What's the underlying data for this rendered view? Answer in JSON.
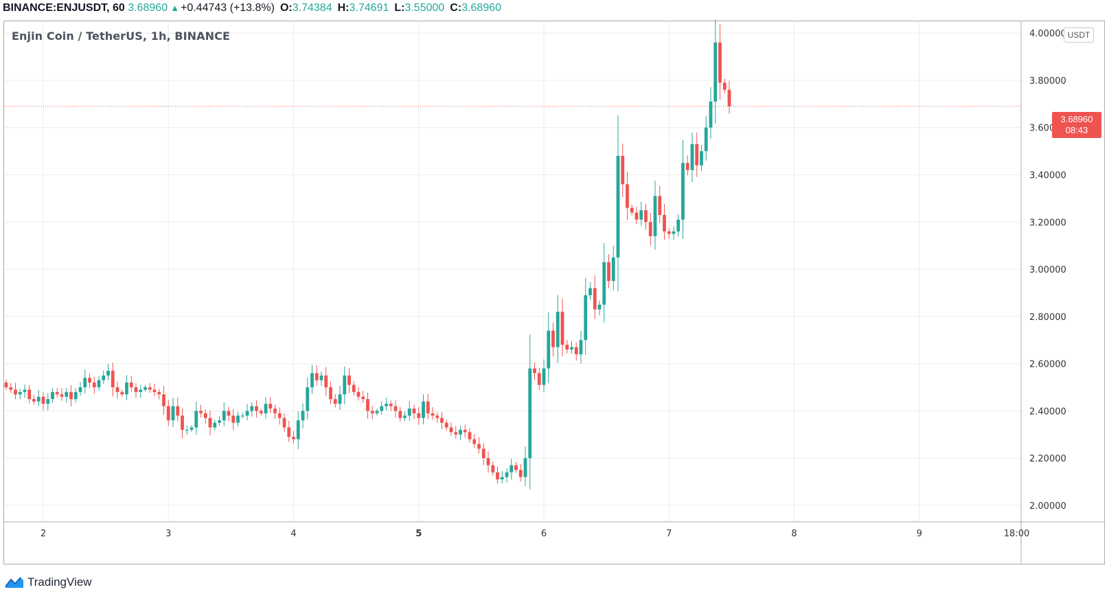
{
  "header": {
    "symbol": "BINANCE:ENJUSDT, 60",
    "price": "3.68960",
    "change_symbol": "▲",
    "change": "+0.44743 (+13.8%)",
    "open_label": "O:",
    "open": "3.74384",
    "high_label": "H:",
    "high": "3.74691",
    "low_label": "L:",
    "low": "3.55000",
    "close_label": "C:",
    "close": "3.68960"
  },
  "chart": {
    "title": "Enjin Coin / TetherUS, 1h, BINANCE",
    "currency": "USDT",
    "last_price": "3.68960",
    "countdown": "08:43",
    "last_price_value": 3.6896
  },
  "logo_text": "TradingView",
  "colors": {
    "up": "#26a69a",
    "down": "#ef5350",
    "grid": "#ececec",
    "price_line": "#ef5350"
  },
  "chart_data": {
    "type": "candlestick",
    "title": "Enjin Coin / TetherUS, 1h, BINANCE",
    "interval": "1h",
    "exchange": "BINANCE",
    "ylim": [
      1.93,
      4.05
    ],
    "y_ticks": [
      "2.00000",
      "2.20000",
      "2.40000",
      "2.60000",
      "2.80000",
      "3.00000",
      "3.20000",
      "3.40000",
      "3.60000",
      "3.80000",
      "4.00000"
    ],
    "y_tick_values": [
      2.0,
      2.2,
      2.4,
      2.6,
      2.8,
      3.0,
      3.2,
      3.4,
      3.6,
      3.8,
      4.0
    ],
    "x_ticks": [
      "2",
      "3",
      "4",
      "5",
      "6",
      "7",
      "8",
      "9",
      "18:00"
    ],
    "x_tick_bold": [
      false,
      false,
      false,
      true,
      false,
      false,
      false,
      false,
      false
    ],
    "x_tick_index": [
      8,
      35,
      62,
      89,
      116,
      143,
      170,
      197,
      218
    ],
    "grid": true,
    "price_line": 3.6896,
    "closes": [
      2.5,
      2.49,
      2.47,
      2.48,
      2.49,
      2.45,
      2.44,
      2.46,
      2.43,
      2.45,
      2.48,
      2.47,
      2.46,
      2.48,
      2.45,
      2.48,
      2.5,
      2.54,
      2.52,
      2.5,
      2.53,
      2.55,
      2.57,
      2.5,
      2.48,
      2.47,
      2.52,
      2.5,
      2.48,
      2.49,
      2.5,
      2.49,
      2.48,
      2.47,
      2.42,
      2.36,
      2.42,
      2.38,
      2.32,
      2.32,
      2.33,
      2.4,
      2.39,
      2.37,
      2.33,
      2.35,
      2.36,
      2.4,
      2.38,
      2.35,
      2.38,
      2.38,
      2.4,
      2.42,
      2.4,
      2.39,
      2.43,
      2.41,
      2.39,
      2.37,
      2.33,
      2.29,
      2.28,
      2.36,
      2.4,
      2.5,
      2.56,
      2.53,
      2.55,
      2.5,
      2.45,
      2.43,
      2.47,
      2.55,
      2.51,
      2.48,
      2.46,
      2.45,
      2.4,
      2.39,
      2.4,
      2.42,
      2.43,
      2.42,
      2.4,
      2.37,
      2.38,
      2.41,
      2.39,
      2.37,
      2.44,
      2.39,
      2.38,
      2.37,
      2.35,
      2.33,
      2.31,
      2.3,
      2.32,
      2.31,
      2.28,
      2.26,
      2.24,
      2.2,
      2.17,
      2.14,
      2.11,
      2.12,
      2.14,
      2.17,
      2.15,
      2.12,
      2.2,
      2.58,
      2.56,
      2.51,
      2.58,
      2.74,
      2.67,
      2.82,
      2.68,
      2.66,
      2.67,
      2.64,
      2.7,
      2.89,
      2.92,
      2.83,
      2.85,
      3.03,
      2.95,
      3.05,
      3.48,
      3.36,
      3.26,
      3.24,
      3.21,
      3.25,
      3.2,
      3.14,
      3.31,
      3.23,
      3.16,
      3.15,
      3.16,
      3.21,
      3.45,
      3.42,
      3.53,
      3.44,
      3.5,
      3.6,
      3.71,
      3.96,
      3.79,
      3.76,
      3.69
    ],
    "start_open": 2.52
  }
}
